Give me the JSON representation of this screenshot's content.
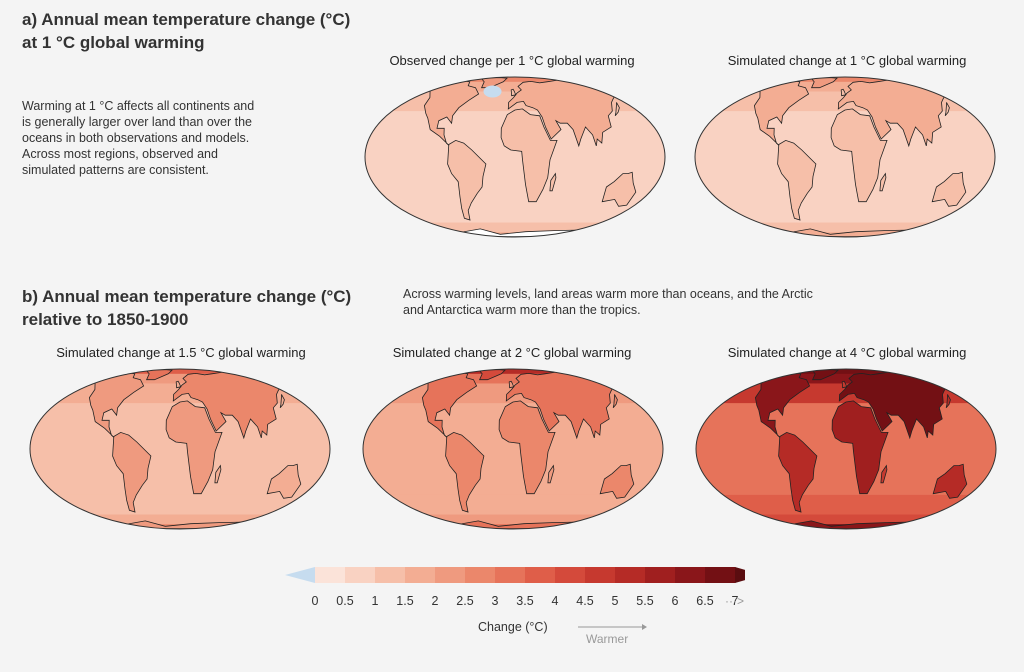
{
  "section_a": {
    "heading_line1": "a) Annual mean temperature change (°C)",
    "heading_line2": "at 1 °C global warming",
    "description": [
      "Warming at 1 °C affects all continents and",
      "is generally larger over land than over the",
      "oceans in both observations and models.",
      "Across most regions, observed and",
      "simulated patterns are consistent."
    ],
    "maps": [
      {
        "title": "Observed change per 1 °C global warming",
        "intensity": 1.0
      },
      {
        "title": "Simulated change at 1 °C global warming",
        "intensity": 1.0
      }
    ]
  },
  "section_b": {
    "heading_line1": "b) Annual mean temperature change (°C)",
    "heading_line2": "relative to 1850-1900",
    "description": [
      "Across warming levels, land areas warm more than oceans, and the Arctic",
      "and Antarctica warm more than the tropics."
    ],
    "maps": [
      {
        "title": "Simulated change at 1.5 °C global warming",
        "intensity": 1.5
      },
      {
        "title": "Simulated change at 2 °C global warming",
        "intensity": 2.0
      },
      {
        "title": "Simulated change at 4 °C global warming",
        "intensity": 4.0
      }
    ]
  },
  "colorbar": {
    "ticks": [
      "0",
      "0.5",
      "1",
      "1.5",
      "2",
      "2.5",
      "3",
      "3.5",
      "4",
      "4.5",
      "5",
      "5.5",
      "6",
      "6.5",
      "7"
    ],
    "colors": [
      "#fbe3d9",
      "#f9d2c2",
      "#f6bfa9",
      "#f3ad93",
      "#ef9a7f",
      "#eb876b",
      "#e6735a",
      "#df5e49",
      "#d44a3b",
      "#c6392f",
      "#b52b26",
      "#a01f1f",
      "#8a161a",
      "#731014"
    ],
    "below_color": "#c6dcef",
    "above_color": "#5a0d10",
    "label": "Change (°C)",
    "warmer_label": "Warmer",
    "more_indicator": "···>"
  }
}
